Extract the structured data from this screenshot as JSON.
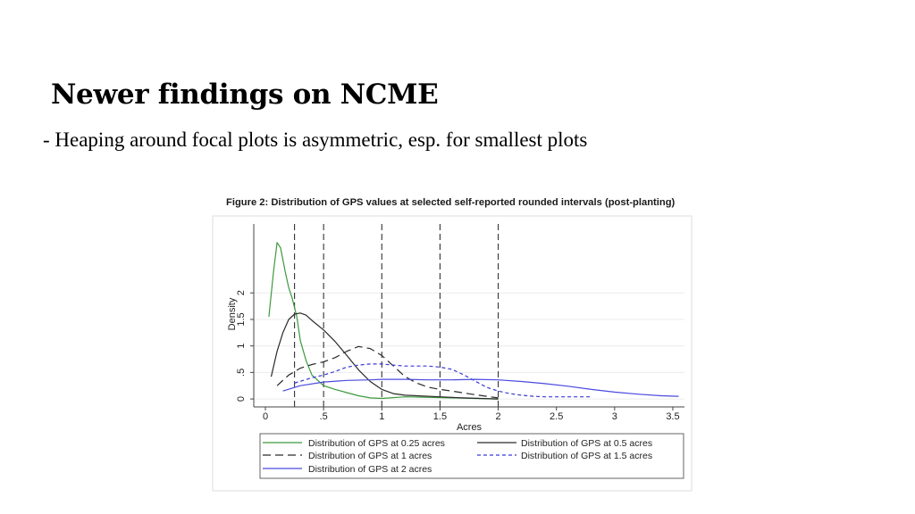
{
  "slide": {
    "title": "Newer findings on NCME",
    "bullet": "- Heaping around focal plots is asymmetric, esp. for smallest plots"
  },
  "figure": {
    "caption": "Figure 2: Distribution of GPS values at selected self-reported rounded intervals (post-planting)"
  },
  "chart_data": {
    "type": "line",
    "title": "Figure 2: Distribution of GPS values at selected self-reported rounded intervals (post-planting)",
    "xlabel": "Acres",
    "ylabel": "Density",
    "xlim": [
      -0.1,
      3.6
    ],
    "ylim": [
      -0.15,
      3.3
    ],
    "xticks": [
      0,
      0.5,
      1,
      1.5,
      2,
      2.5,
      3,
      3.5
    ],
    "xtick_labels": [
      "0",
      ".5",
      "1",
      "1.5",
      "2",
      "2.5",
      "3",
      "3.5"
    ],
    "yticks": [
      0,
      0.5,
      1,
      1.5,
      2
    ],
    "ytick_labels": [
      "0",
      ".5",
      "1",
      "1.5",
      "2"
    ],
    "grid": true,
    "reference_lines_x": [
      0.25,
      0.5,
      1,
      1.5,
      2
    ],
    "legend_position": "bottom",
    "series": [
      {
        "name": "Distribution of GPS at 0.25 acres",
        "color": "#3c9a3c",
        "dash": "solid",
        "x": [
          0.03,
          0.07,
          0.1,
          0.13,
          0.17,
          0.2,
          0.23,
          0.27,
          0.3,
          0.35,
          0.4,
          0.5,
          0.6,
          0.7,
          0.8,
          0.9,
          1.0,
          1.2,
          1.4,
          1.6,
          1.8,
          2.0
        ],
        "y": [
          1.55,
          2.4,
          2.95,
          2.85,
          2.4,
          2.1,
          1.9,
          1.55,
          1.1,
          0.72,
          0.45,
          0.25,
          0.18,
          0.12,
          0.06,
          0.02,
          0.01,
          0.04,
          0.03,
          0.02,
          0.01,
          0.0
        ]
      },
      {
        "name": "Distribution of GPS at 0.5 acres",
        "color": "#2a2a2a",
        "dash": "solid",
        "x": [
          0.05,
          0.1,
          0.15,
          0.2,
          0.25,
          0.3,
          0.35,
          0.4,
          0.5,
          0.6,
          0.7,
          0.8,
          0.9,
          1.0,
          1.1,
          1.2,
          1.3,
          1.5,
          1.7,
          2.0
        ],
        "y": [
          0.42,
          0.9,
          1.25,
          1.5,
          1.6,
          1.62,
          1.58,
          1.48,
          1.3,
          1.08,
          0.82,
          0.55,
          0.33,
          0.18,
          0.1,
          0.07,
          0.06,
          0.04,
          0.02,
          0.0
        ]
      },
      {
        "name": "Distribution of GPS at 1 acres",
        "color": "#2a2a2a",
        "dash": "long",
        "x": [
          0.1,
          0.2,
          0.3,
          0.4,
          0.5,
          0.6,
          0.7,
          0.8,
          0.9,
          1.0,
          1.1,
          1.2,
          1.3,
          1.4,
          1.5,
          1.6,
          1.8,
          2.0
        ],
        "y": [
          0.25,
          0.45,
          0.58,
          0.65,
          0.7,
          0.78,
          0.9,
          0.99,
          0.95,
          0.82,
          0.62,
          0.42,
          0.3,
          0.22,
          0.18,
          0.15,
          0.08,
          0.02
        ]
      },
      {
        "name": "Distribution of GPS at 1.5 acres",
        "color": "#3a3ad6",
        "dash": "short",
        "x": [
          0.25,
          0.4,
          0.5,
          0.6,
          0.7,
          0.8,
          0.9,
          1.0,
          1.1,
          1.2,
          1.3,
          1.4,
          1.5,
          1.6,
          1.7,
          1.8,
          1.9,
          2.0,
          2.1,
          2.2,
          2.3,
          2.4,
          2.6,
          2.8
        ],
        "y": [
          0.3,
          0.4,
          0.45,
          0.52,
          0.6,
          0.64,
          0.66,
          0.66,
          0.64,
          0.62,
          0.62,
          0.62,
          0.6,
          0.56,
          0.46,
          0.34,
          0.22,
          0.15,
          0.1,
          0.07,
          0.05,
          0.04,
          0.04,
          0.04
        ]
      },
      {
        "name": "Distribution of GPS at 2 acres",
        "color": "#4a4ae0",
        "dash": "solid",
        "x": [
          0.15,
          0.3,
          0.5,
          0.7,
          0.9,
          1.0,
          1.2,
          1.4,
          1.6,
          1.8,
          2.0,
          2.2,
          2.4,
          2.6,
          2.8,
          3.0,
          3.2,
          3.4,
          3.55
        ],
        "y": [
          0.15,
          0.25,
          0.32,
          0.35,
          0.36,
          0.37,
          0.37,
          0.36,
          0.36,
          0.37,
          0.36,
          0.33,
          0.29,
          0.24,
          0.18,
          0.13,
          0.09,
          0.06,
          0.05
        ]
      }
    ]
  }
}
